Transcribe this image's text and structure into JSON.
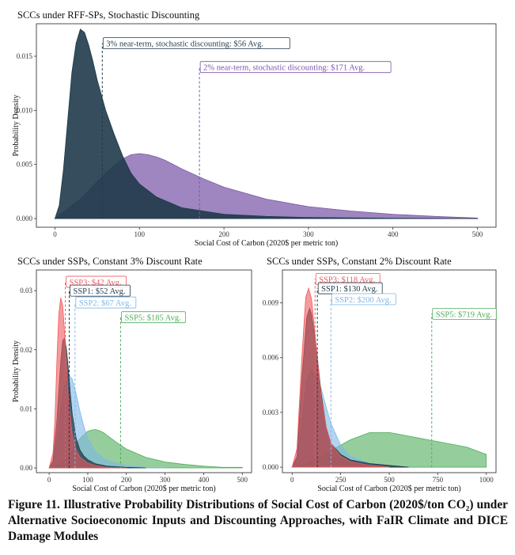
{
  "caption": "Figure 11. Illustrative Probability Distributions of Social Cost of Carbon (2020$/ton CO₂) under Alternative Socioeconomic Inputs and Discounting Approaches, with FaIR Climate and DICE Damage Modules",
  "colors": {
    "navy": "#1f3a4a",
    "purple": "#7a57a8",
    "red": "#f0585c",
    "blue": "#7fb8e6",
    "green": "#4fae5a",
    "plot_border": "#222222"
  },
  "chart_data": [
    {
      "id": "top",
      "type": "area",
      "title": "SCCs under RFF-SPs, Stochastic Discounting",
      "xlabel": "Social Cost of Carbon (2020$ per metric ton)",
      "ylabel": "Probability Density",
      "xlim": [
        -22,
        522
      ],
      "ylim": [
        -0.0008,
        0.018
      ],
      "xticks": [
        0,
        100,
        200,
        300,
        400,
        500
      ],
      "xtick_labels": [
        "0",
        "100",
        "200",
        "300",
        "400",
        "500"
      ],
      "yticks": [
        0,
        0.005,
        0.01,
        0.015
      ],
      "ytick_labels": [
        "0.000",
        "0.005",
        "0.010",
        "0.015"
      ],
      "series": [
        {
          "color": "#7a57a8",
          "opacity": 0.72,
          "x": [
            0,
            10,
            20,
            30,
            40,
            50,
            60,
            70,
            80,
            90,
            100,
            110,
            120,
            130,
            140,
            150,
            175,
            200,
            250,
            300,
            350,
            400,
            450,
            500
          ],
          "y": [
            0,
            0.0006,
            0.0012,
            0.0018,
            0.0026,
            0.0034,
            0.0042,
            0.0049,
            0.0055,
            0.0059,
            0.006,
            0.0059,
            0.0057,
            0.0054,
            0.005,
            0.0046,
            0.0037,
            0.0029,
            0.0018,
            0.0011,
            0.0007,
            0.0004,
            0.0002,
            5e-05
          ]
        },
        {
          "color": "#1f3a4a",
          "opacity": 0.9,
          "x": [
            0,
            5,
            10,
            15,
            20,
            25,
            30,
            35,
            40,
            45,
            50,
            60,
            70,
            80,
            90,
            100,
            120,
            150,
            200,
            250,
            300,
            400,
            500
          ],
          "y": [
            0,
            0.0012,
            0.0045,
            0.009,
            0.0135,
            0.0162,
            0.0175,
            0.0172,
            0.016,
            0.0145,
            0.0128,
            0.01,
            0.0078,
            0.0058,
            0.0042,
            0.0032,
            0.002,
            0.001,
            0.0004,
            0.0002,
            0.0001,
            3e-05,
            0
          ]
        }
      ],
      "annotations": [
        {
          "label": "3% near-term, stochastic discounting: $56 Avg.",
          "x": 56,
          "y_top": 0.0162,
          "color": "#1f3a4a"
        },
        {
          "label": "2% near-term, stochastic discounting: $171 Avg.",
          "x": 171,
          "y_top": 0.014,
          "color": "#7a57a8"
        }
      ]
    },
    {
      "id": "left",
      "type": "area",
      "title": "SCCs under SSPs, Constant 3% Discount Rate",
      "xlabel": "Social Cost of Carbon (2020$ per metric ton)",
      "ylabel": "Probability Density",
      "xlim": [
        -33,
        524
      ],
      "ylim": [
        -0.0008,
        0.0335
      ],
      "xticks": [
        0,
        100,
        200,
        300,
        400,
        500
      ],
      "xtick_labels": [
        "0",
        "100",
        "200",
        "300",
        "400",
        "500"
      ],
      "yticks": [
        0,
        0.01,
        0.02,
        0.03
      ],
      "ytick_labels": [
        "0.00",
        "0.01",
        "0.02",
        "0.03"
      ],
      "series": [
        {
          "color": "#4fae5a",
          "opacity": 0.6,
          "x": [
            0,
            20,
            40,
            60,
            80,
            100,
            110,
            120,
            130,
            140,
            150,
            175,
            200,
            250,
            300,
            350,
            400,
            450,
            500
          ],
          "y": [
            0,
            0.0003,
            0.0012,
            0.003,
            0.005,
            0.0062,
            0.0064,
            0.0065,
            0.0063,
            0.006,
            0.0055,
            0.0043,
            0.0032,
            0.0018,
            0.001,
            0.0006,
            0.0003,
            0.0001,
            0.0001
          ]
        },
        {
          "color": "#7fb8e6",
          "opacity": 0.6,
          "x": [
            0,
            10,
            20,
            30,
            40,
            50,
            60,
            70,
            80,
            90,
            100,
            120,
            150,
            200,
            250,
            300
          ],
          "y": [
            0,
            0.001,
            0.0045,
            0.0095,
            0.014,
            0.0158,
            0.015,
            0.0125,
            0.0095,
            0.007,
            0.005,
            0.0027,
            0.0012,
            0.0004,
            0.0001,
            0
          ]
        },
        {
          "color": "#1f3a4a",
          "opacity": 0.75,
          "x": [
            0,
            10,
            20,
            30,
            35,
            40,
            45,
            50,
            55,
            60,
            70,
            80,
            90,
            100,
            120,
            150,
            200,
            250
          ],
          "y": [
            0,
            0.0012,
            0.008,
            0.018,
            0.0215,
            0.022,
            0.02,
            0.0165,
            0.0125,
            0.009,
            0.005,
            0.003,
            0.002,
            0.0014,
            0.0007,
            0.0003,
            0.0001,
            0
          ]
        },
        {
          "color": "#f0585c",
          "opacity": 0.6,
          "x": [
            0,
            10,
            15,
            20,
            25,
            30,
            35,
            40,
            45,
            50,
            60,
            70,
            80,
            100,
            120,
            150,
            200
          ],
          "y": [
            0,
            0.0025,
            0.008,
            0.018,
            0.026,
            0.0288,
            0.0275,
            0.023,
            0.017,
            0.0115,
            0.0055,
            0.003,
            0.0018,
            0.0008,
            0.0004,
            0.0001,
            0
          ]
        }
      ],
      "annotations": [
        {
          "label": "SSP3: $42 Avg.",
          "x": 42,
          "y_top": 0.0315,
          "color": "#f0585c"
        },
        {
          "label": "SSP1: $52 Avg.",
          "x": 52,
          "y_top": 0.03,
          "color": "#1f3a4a"
        },
        {
          "label": "SSP2: $67 Avg.",
          "x": 67,
          "y_top": 0.028,
          "color": "#7fb8e6"
        },
        {
          "label": "SSP5: $185 Avg.",
          "x": 185,
          "y_top": 0.0255,
          "color": "#4fae5a"
        }
      ]
    },
    {
      "id": "right",
      "type": "area",
      "title": "SCCs under SSPs, Constant 2% Discount Rate",
      "xlabel": "Social Cost of Carbon (2020$ per metric ton)",
      "ylabel": "Probability Density",
      "xlim": [
        -50,
        1050
      ],
      "ylim": [
        -0.0003,
        0.0108
      ],
      "xticks": [
        0,
        250,
        500,
        750,
        1000
      ],
      "xtick_labels": [
        "0",
        "250",
        "500",
        "750",
        "1000"
      ],
      "yticks": [
        0,
        0.003,
        0.006,
        0.009
      ],
      "ytick_labels": [
        "0.000",
        "0.003",
        "0.006",
        "0.009"
      ],
      "series": [
        {
          "color": "#4fae5a",
          "opacity": 0.6,
          "x": [
            0,
            50,
            100,
            150,
            200,
            250,
            300,
            350,
            400,
            450,
            500,
            550,
            600,
            650,
            700,
            750,
            800,
            850,
            900,
            950,
            1000
          ],
          "y": [
            0,
            0.0001,
            0.0003,
            0.0006,
            0.0009,
            0.0012,
            0.0015,
            0.0017,
            0.0019,
            0.0019,
            0.0019,
            0.0018,
            0.0017,
            0.0016,
            0.0015,
            0.0014,
            0.0013,
            0.0012,
            0.0011,
            0.0009,
            0.0007
          ]
        },
        {
          "color": "#7fb8e6",
          "opacity": 0.6,
          "x": [
            0,
            25,
            50,
            75,
            100,
            125,
            150,
            175,
            200,
            250,
            300,
            400,
            500,
            600
          ],
          "y": [
            0,
            0.0004,
            0.0025,
            0.0048,
            0.0053,
            0.005,
            0.0043,
            0.0033,
            0.0024,
            0.0012,
            0.0006,
            0.0002,
            0.0001,
            0
          ]
        },
        {
          "color": "#1f3a4a",
          "opacity": 0.75,
          "x": [
            0,
            25,
            50,
            75,
            90,
            100,
            125,
            150,
            175,
            200,
            250,
            300,
            400,
            500,
            600
          ],
          "y": [
            0,
            0.0006,
            0.0048,
            0.0082,
            0.0087,
            0.0084,
            0.0065,
            0.004,
            0.0022,
            0.0013,
            0.0007,
            0.0004,
            0.0002,
            0.0001,
            0
          ]
        },
        {
          "color": "#f0585c",
          "opacity": 0.6,
          "x": [
            0,
            25,
            50,
            70,
            85,
            100,
            125,
            150,
            175,
            200,
            250,
            300,
            400,
            500
          ],
          "y": [
            0,
            0.001,
            0.006,
            0.0093,
            0.0098,
            0.0092,
            0.0065,
            0.0038,
            0.0022,
            0.0013,
            0.0006,
            0.0003,
            0.0001,
            0
          ]
        }
      ],
      "annotations": [
        {
          "label": "SSP3: $118 Avg.",
          "x": 118,
          "y_top": 0.0103,
          "color": "#f0585c"
        },
        {
          "label": "SSP1: $130 Avg.",
          "x": 130,
          "y_top": 0.0098,
          "color": "#1f3a4a"
        },
        {
          "label": "SSP2: $200 Avg.",
          "x": 200,
          "y_top": 0.0092,
          "color": "#7fb8e6"
        },
        {
          "label": "SSP5: $719 Avg.",
          "x": 719,
          "y_top": 0.0084,
          "color": "#4fae5a"
        }
      ]
    }
  ]
}
